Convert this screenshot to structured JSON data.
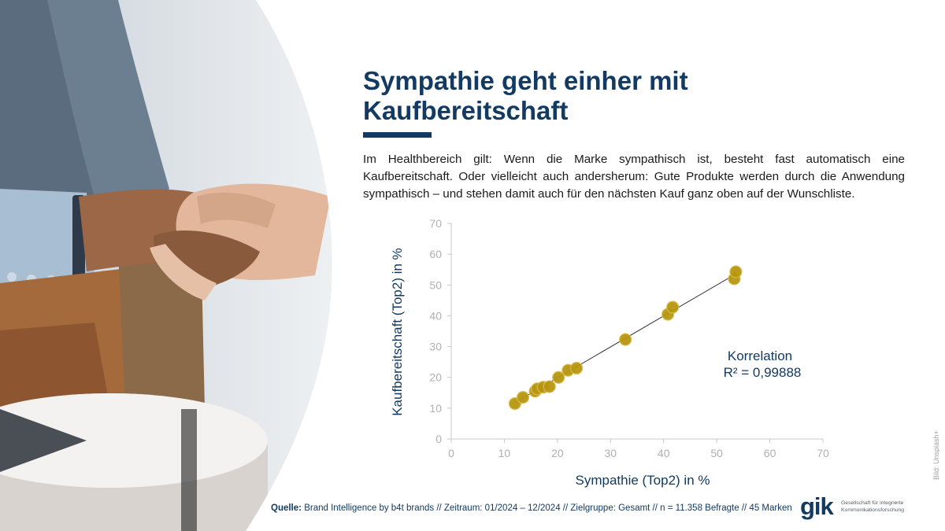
{
  "slide": {
    "title": "Sympathie geht einher mit Kaufbereitschaft",
    "body": "Im Healthbereich gilt: Wenn die Marke sympathisch ist, besteht fast automatisch eine Kaufbereitschaft. Oder vielleicht auch andersherum: Gute Produkte werden durch die Anwendung sympathisch – und stehen damit auch für den nächsten Kauf ganz oben auf der Wunschliste.",
    "image_credit": "Bild: Unsplash+"
  },
  "source": {
    "label": "Quelle:",
    "text": "Brand Intelligence by b4t brands // Zeitraum: 01/2024 – 12/2024 // Zielgruppe: Gesamt // n = 11.358 Befragte // 45 Marken"
  },
  "logo": {
    "mark": "gik",
    "subtitle_line1": "Gesellschaft für integrierte",
    "subtitle_line2": "Kommunikationsforschung"
  },
  "colors": {
    "title": "#123a63",
    "point": "#b8960e",
    "axis_text": "#b0b0b0",
    "trendline": "#333333"
  },
  "chart_data": {
    "type": "scatter",
    "xlabel": "Sympathie (Top2) in %",
    "ylabel": "Kaufbereitschaft (Top2) in %",
    "xlim": [
      0,
      70
    ],
    "ylim": [
      0,
      70
    ],
    "xticks": [
      0,
      10,
      20,
      30,
      40,
      50,
      60,
      70
    ],
    "yticks": [
      0,
      10,
      20,
      30,
      40,
      50,
      60,
      70
    ],
    "grid": false,
    "annotation": {
      "line1": "Korrelation",
      "line2": "R² = 0,99888"
    },
    "trendline": {
      "x": [
        12,
        53.5
      ],
      "y": [
        11.8,
        53.5
      ]
    },
    "points": [
      {
        "x": 12.0,
        "y": 11.5
      },
      {
        "x": 13.5,
        "y": 13.5
      },
      {
        "x": 15.8,
        "y": 15.5
      },
      {
        "x": 16.2,
        "y": 16.3
      },
      {
        "x": 17.3,
        "y": 16.8
      },
      {
        "x": 18.5,
        "y": 17.0
      },
      {
        "x": 20.2,
        "y": 20.0
      },
      {
        "x": 22.0,
        "y": 22.3
      },
      {
        "x": 23.6,
        "y": 23.0
      },
      {
        "x": 32.8,
        "y": 32.3
      },
      {
        "x": 40.8,
        "y": 40.5
      },
      {
        "x": 41.7,
        "y": 42.8
      },
      {
        "x": 53.3,
        "y": 52.0
      },
      {
        "x": 53.6,
        "y": 54.3
      }
    ]
  }
}
